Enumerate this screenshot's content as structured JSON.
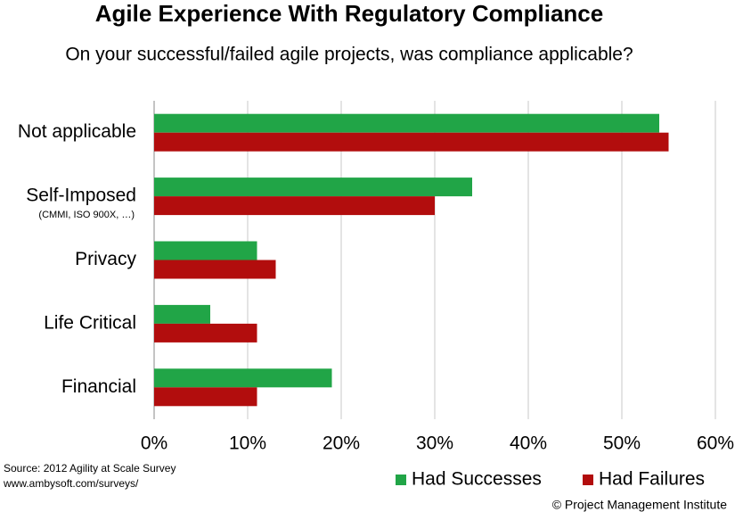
{
  "chart_data": {
    "type": "hbar",
    "title": "Agile Experience With Regulatory Compliance",
    "subtitle": "On your successful/failed agile projects, was compliance applicable?",
    "categories": [
      "Not applicable",
      "Self-Imposed",
      "Privacy",
      "Life Critical",
      "Financial"
    ],
    "category_notes": [
      null,
      "(CMMI, ISO 900X, …)",
      null,
      null,
      null
    ],
    "series": [
      {
        "name": "Had Successes",
        "color": "#21a547",
        "values": [
          54,
          34,
          11,
          6,
          19
        ]
      },
      {
        "name": "Had Failures",
        "color": "#b20d0d",
        "values": [
          55,
          30,
          13,
          11,
          11
        ]
      }
    ],
    "xlim": [
      0,
      60
    ],
    "xticks": [
      {
        "value": 0,
        "label": "0%"
      },
      {
        "value": 10,
        "label": "10%"
      },
      {
        "value": 20,
        "label": "20%"
      },
      {
        "value": 30,
        "label": "30%"
      },
      {
        "value": 40,
        "label": "40%"
      },
      {
        "value": 50,
        "label": "50%"
      },
      {
        "value": 60,
        "label": "60%"
      }
    ],
    "grid": true,
    "legend": "bottom-right",
    "source": [
      "Source: 2012 Agility at Scale Survey",
      "www.ambysoft.com/surveys/"
    ],
    "credit": "© Project Management Institute"
  }
}
